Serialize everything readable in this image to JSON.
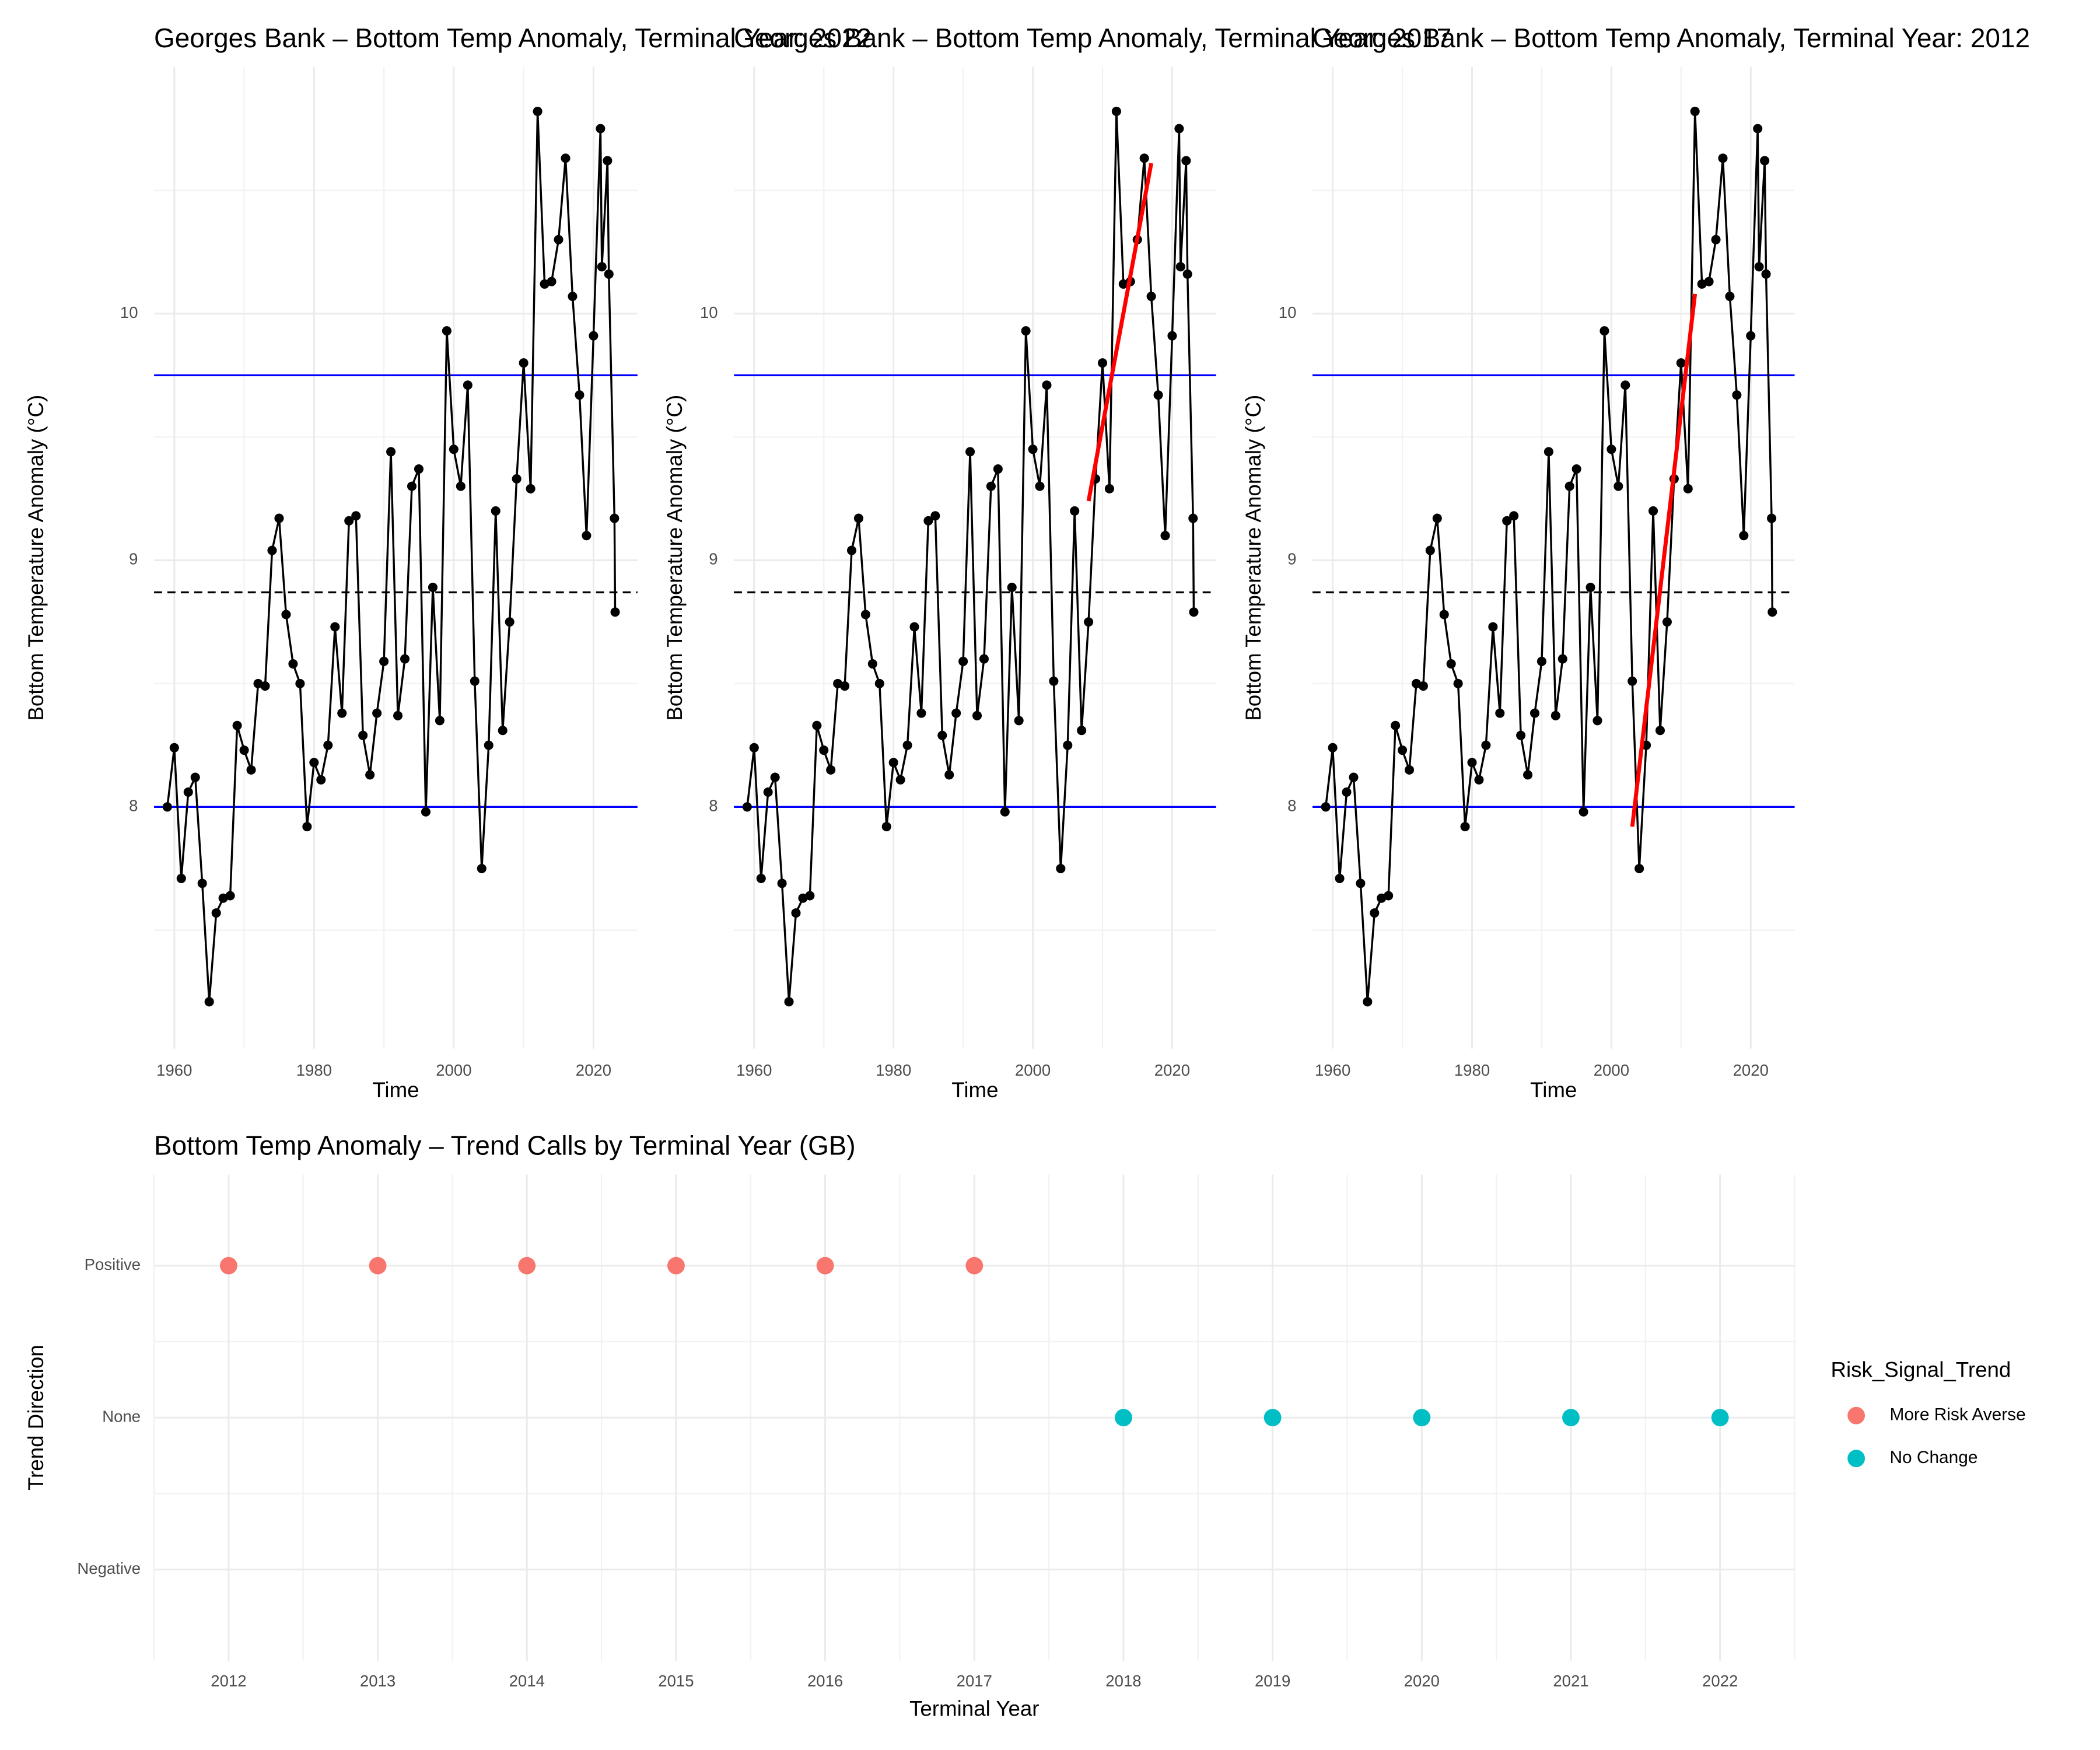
{
  "chart_data": [
    {
      "type": "line",
      "title": "Georges Bank – Bottom Temp Anomaly, Terminal Year: 2022",
      "x": [
        1959,
        1960,
        1961,
        1962,
        1963,
        1964,
        1965,
        1966,
        1967,
        1968,
        1969,
        1970,
        1971,
        1972,
        1973,
        1974,
        1975,
        1976,
        1977,
        1978,
        1979,
        1980,
        1981,
        1982,
        1983,
        1984,
        1985,
        1986,
        1987,
        1988,
        1989,
        1990,
        1991,
        1992,
        1993,
        1994,
        1995,
        1996,
        1997,
        1998,
        1999,
        2000,
        2001,
        2002,
        2003,
        2004,
        2005,
        2006,
        2007,
        2008,
        2009,
        2010,
        2011,
        2012,
        2013,
        2014,
        2015,
        2016,
        2017,
        2018,
        2019,
        2020,
        2021,
        2021.2,
        2022,
        2022.2,
        2023,
        2023.1
      ],
      "values": [
        8.0,
        8.24,
        7.71,
        8.06,
        8.12,
        7.69,
        7.21,
        7.57,
        7.63,
        7.64,
        8.33,
        8.23,
        8.15,
        8.5,
        8.49,
        9.04,
        9.17,
        8.78,
        8.58,
        8.5,
        7.92,
        8.18,
        8.11,
        8.25,
        8.73,
        8.38,
        9.16,
        9.18,
        8.29,
        8.13,
        8.38,
        8.59,
        9.44,
        8.37,
        8.6,
        9.3,
        9.37,
        7.98,
        8.89,
        8.35,
        9.93,
        9.45,
        9.3,
        9.71,
        8.51,
        7.75,
        8.25,
        9.2,
        8.31,
        8.75,
        9.33,
        9.8,
        9.29,
        10.82,
        10.12,
        10.13,
        10.3,
        10.63,
        10.07,
        9.67,
        9.1,
        9.91,
        10.75,
        10.19,
        10.62,
        10.16,
        9.17,
        8.79
      ],
      "color": "#000000",
      "xlim": [
        1957.1,
        2026.3
      ],
      "ylim": [
        7.02,
        11.0
      ],
      "xticks": [
        1960,
        1980,
        2000,
        2020
      ],
      "yticks": [
        8,
        9,
        10
      ],
      "xminor": [
        1970,
        1990,
        2010
      ],
      "yminor": [
        7.5,
        8.5,
        9.5,
        10.5
      ],
      "xlabel": "Time",
      "ylabel": "Bottom Temperature Anomaly (°C)",
      "hlines": [
        {
          "value": 9.75,
          "color": "#0000ff",
          "style": "solid"
        },
        {
          "value": 8.0,
          "color": "#0000ff",
          "style": "solid"
        },
        {
          "value": 8.87,
          "color": "#000000",
          "style": "dashed"
        }
      ]
    },
    {
      "type": "line",
      "title": "Georges Bank – Bottom Temp Anomaly, Terminal Year: 2017",
      "x": [
        1959,
        1960,
        1961,
        1962,
        1963,
        1964,
        1965,
        1966,
        1967,
        1968,
        1969,
        1970,
        1971,
        1972,
        1973,
        1974,
        1975,
        1976,
        1977,
        1978,
        1979,
        1980,
        1981,
        1982,
        1983,
        1984,
        1985,
        1986,
        1987,
        1988,
        1989,
        1990,
        1991,
        1992,
        1993,
        1994,
        1995,
        1996,
        1997,
        1998,
        1999,
        2000,
        2001,
        2002,
        2003,
        2004,
        2005,
        2006,
        2007,
        2008,
        2009,
        2010,
        2011,
        2012,
        2013,
        2014,
        2015,
        2016,
        2017,
        2018,
        2019,
        2020,
        2021,
        2021.2,
        2022,
        2022.2,
        2023,
        2023.1
      ],
      "values": [
        8.0,
        8.24,
        7.71,
        8.06,
        8.12,
        7.69,
        7.21,
        7.57,
        7.63,
        7.64,
        8.33,
        8.23,
        8.15,
        8.5,
        8.49,
        9.04,
        9.17,
        8.78,
        8.58,
        8.5,
        7.92,
        8.18,
        8.11,
        8.25,
        8.73,
        8.38,
        9.16,
        9.18,
        8.29,
        8.13,
        8.38,
        8.59,
        9.44,
        8.37,
        8.6,
        9.3,
        9.37,
        7.98,
        8.89,
        8.35,
        9.93,
        9.45,
        9.3,
        9.71,
        8.51,
        7.75,
        8.25,
        9.2,
        8.31,
        8.75,
        9.33,
        9.8,
        9.29,
        10.82,
        10.12,
        10.13,
        10.3,
        10.63,
        10.07,
        9.67,
        9.1,
        9.91,
        10.75,
        10.19,
        10.62,
        10.16,
        9.17,
        8.79
      ],
      "color": "#000000",
      "xlim": [
        1957.1,
        2026.3
      ],
      "ylim": [
        7.02,
        11.0
      ],
      "xticks": [
        1960,
        1980,
        2000,
        2020
      ],
      "yticks": [
        8,
        9,
        10
      ],
      "xminor": [
        1970,
        1990,
        2010
      ],
      "yminor": [
        7.5,
        8.5,
        9.5,
        10.5
      ],
      "xlabel": "Time",
      "ylabel": "Bottom Temperature Anomaly (°C)",
      "hlines": [
        {
          "value": 9.75,
          "color": "#0000ff",
          "style": "solid"
        },
        {
          "value": 8.0,
          "color": "#0000ff",
          "style": "solid"
        },
        {
          "value": 8.87,
          "color": "#000000",
          "style": "dashed"
        }
      ],
      "trend": {
        "x": [
          2008,
          2017
        ],
        "values": [
          9.24,
          10.61
        ],
        "color": "#ff0000"
      }
    },
    {
      "type": "line",
      "title": "Georges Bank – Bottom Temp Anomaly, Terminal Year: 2012",
      "x": [
        1959,
        1960,
        1961,
        1962,
        1963,
        1964,
        1965,
        1966,
        1967,
        1968,
        1969,
        1970,
        1971,
        1972,
        1973,
        1974,
        1975,
        1976,
        1977,
        1978,
        1979,
        1980,
        1981,
        1982,
        1983,
        1984,
        1985,
        1986,
        1987,
        1988,
        1989,
        1990,
        1991,
        1992,
        1993,
        1994,
        1995,
        1996,
        1997,
        1998,
        1999,
        2000,
        2001,
        2002,
        2003,
        2004,
        2005,
        2006,
        2007,
        2008,
        2009,
        2010,
        2011,
        2012,
        2013,
        2014,
        2015,
        2016,
        2017,
        2018,
        2019,
        2020,
        2021,
        2021.2,
        2022,
        2022.2,
        2023,
        2023.1
      ],
      "values": [
        8.0,
        8.24,
        7.71,
        8.06,
        8.12,
        7.69,
        7.21,
        7.57,
        7.63,
        7.64,
        8.33,
        8.23,
        8.15,
        8.5,
        8.49,
        9.04,
        9.17,
        8.78,
        8.58,
        8.5,
        7.92,
        8.18,
        8.11,
        8.25,
        8.73,
        8.38,
        9.16,
        9.18,
        8.29,
        8.13,
        8.38,
        8.59,
        9.44,
        8.37,
        8.6,
        9.3,
        9.37,
        7.98,
        8.89,
        8.35,
        9.93,
        9.45,
        9.3,
        9.71,
        8.51,
        7.75,
        8.25,
        9.2,
        8.31,
        8.75,
        9.33,
        9.8,
        9.29,
        10.82,
        10.12,
        10.13,
        10.3,
        10.63,
        10.07,
        9.67,
        9.1,
        9.91,
        10.75,
        10.19,
        10.62,
        10.16,
        9.17,
        8.79
      ],
      "color": "#000000",
      "xlim": [
        1957.1,
        2026.3
      ],
      "ylim": [
        7.02,
        11.0
      ],
      "xticks": [
        1960,
        1980,
        2000,
        2020
      ],
      "yticks": [
        8,
        9,
        10
      ],
      "xminor": [
        1970,
        1990,
        2010
      ],
      "yminor": [
        7.5,
        8.5,
        9.5,
        10.5
      ],
      "xlabel": "Time",
      "ylabel": "Bottom Temperature Anomaly (°C)",
      "hlines": [
        {
          "value": 9.75,
          "color": "#0000ff",
          "style": "solid"
        },
        {
          "value": 8.0,
          "color": "#0000ff",
          "style": "solid"
        },
        {
          "value": 8.87,
          "color": "#000000",
          "style": "dashed"
        }
      ],
      "trend": {
        "x": [
          2003,
          2012
        ],
        "values": [
          7.92,
          10.08
        ],
        "color": "#ff0000"
      }
    },
    {
      "type": "dot",
      "title": "Bottom Temp Anomaly – Trend Calls by Terminal Year (GB)",
      "categories": [
        2012,
        2013,
        2014,
        2015,
        2016,
        2017,
        2018,
        2019,
        2020,
        2021,
        2022
      ],
      "y_categories": [
        "Positive",
        "None",
        "Negative"
      ],
      "series": [
        {
          "name": "More Risk Averse",
          "color": "#F8766D",
          "values": [
            "Positive",
            "Positive",
            "Positive",
            "Positive",
            "Positive",
            "Positive",
            null,
            null,
            null,
            null,
            null
          ]
        },
        {
          "name": "No Change",
          "color": "#00BFC4",
          "values": [
            null,
            null,
            null,
            null,
            null,
            null,
            "None",
            "None",
            "None",
            "None",
            "None"
          ]
        }
      ],
      "xlabel": "Terminal Year",
      "ylabel": "Trend Direction",
      "legend_title": "Risk_Signal_Trend",
      "legend": "right"
    }
  ]
}
